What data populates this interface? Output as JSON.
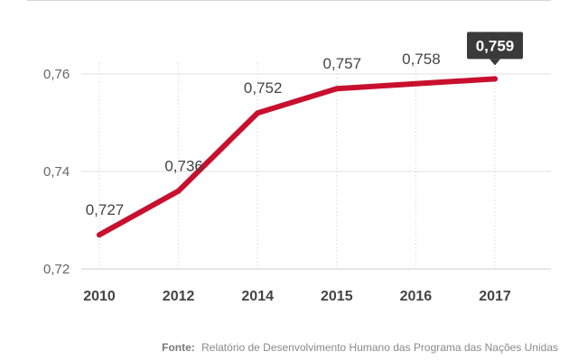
{
  "chart_data": {
    "type": "line",
    "categories": [
      "2010",
      "2012",
      "2014",
      "2015",
      "2016",
      "2017"
    ],
    "series": [
      {
        "values": [
          0.727,
          0.736,
          0.752,
          0.757,
          0.758,
          0.759
        ]
      }
    ],
    "data_labels": [
      "0,727",
      "0,736",
      "0,752",
      "0,757",
      "0,758",
      "0,759"
    ],
    "highlight_index": 5,
    "y_ticks": [
      0.72,
      0.74,
      0.76
    ],
    "y_tick_labels": [
      "0,72",
      "0,74",
      "0,76"
    ],
    "ylim": [
      0.72,
      0.76
    ],
    "grid": "vertical dotted",
    "line_color": "#c8102e",
    "highlight_box_color": "#3a3a3a"
  },
  "footer": {
    "label": "Fonte:",
    "text": "Relatório de Desenvolvimento Humano das Programa das Nações Unidas"
  }
}
